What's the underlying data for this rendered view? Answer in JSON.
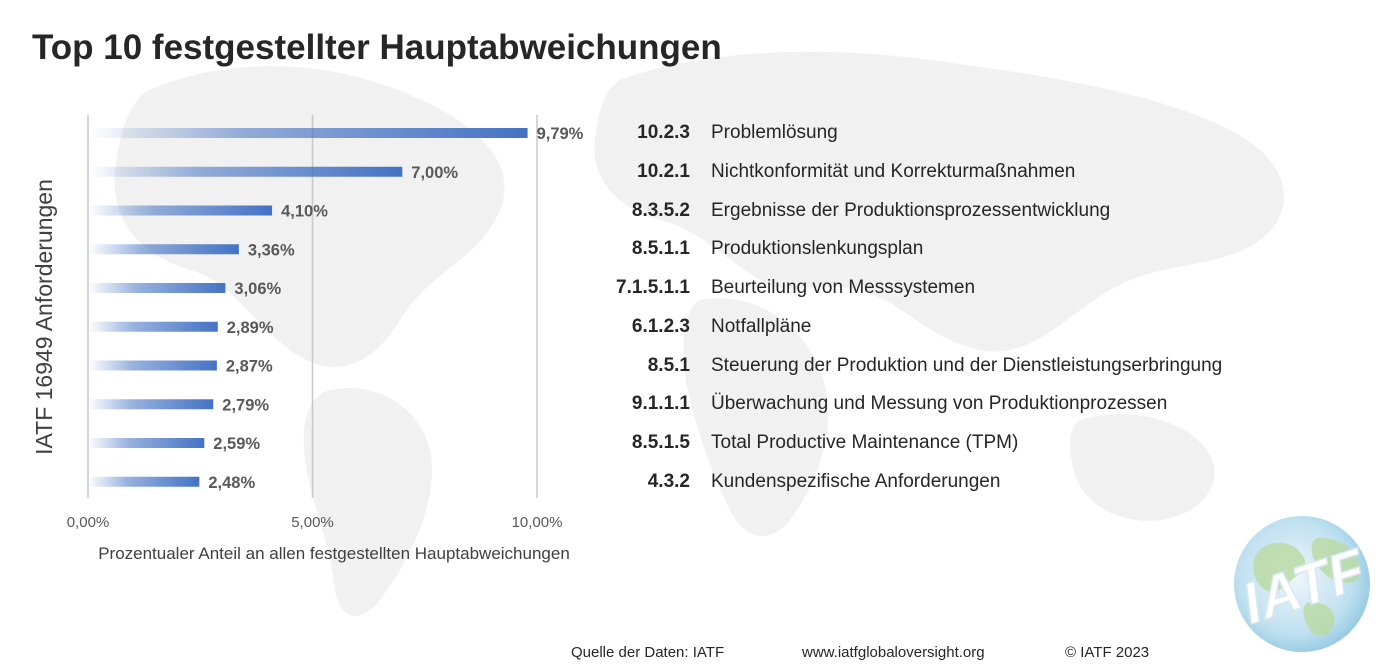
{
  "page": {
    "title": "Top 10 festgestellter Hauptabweichungen"
  },
  "chart_data": {
    "type": "bar",
    "orientation": "horizontal",
    "title": "Top 10 festgestellter Hauptabweichungen",
    "ylabel": "IATF 16949 Anforderungen",
    "xlabel": "Prozentualer Anteil an allen festgestellten Hauptabweichungen",
    "xlim": [
      0,
      10
    ],
    "xticks": [
      0,
      5,
      10
    ],
    "xtick_labels": [
      "0,00%",
      "5,00%",
      "10,00%"
    ],
    "grid": "vertical",
    "bar_color": "#4472C4",
    "categories": [
      {
        "code": "10.2.3",
        "label": "Problemlösung"
      },
      {
        "code": "10.2.1",
        "label": "Nichtkonformität und Korrekturmaßnahmen"
      },
      {
        "code": "8.3.5.2",
        "label": "Ergebnisse der Produktionsprozessentwicklung"
      },
      {
        "code": "8.5.1.1",
        "label": "Produktionslenkungsplan"
      },
      {
        "code": "7.1.5.1.1",
        "label": "Beurteilung von Messsystemen"
      },
      {
        "code": "6.1.2.3",
        "label": "Notfallpläne"
      },
      {
        "code": "8.5.1",
        "label": "Steuerung der Produktion und der Dienstleistungserbringung"
      },
      {
        "code": "9.1.1.1",
        "label": "Überwachung und Messung von Produktionprozessen"
      },
      {
        "code": "8.5.1.5",
        "label": "Total Productive Maintenance (TPM)"
      },
      {
        "code": "4.3.2",
        "label": "Kundenspezifische Anforderungen"
      }
    ],
    "values": [
      9.79,
      7.0,
      4.1,
      3.36,
      3.06,
      2.89,
      2.87,
      2.79,
      2.59,
      2.48
    ],
    "value_labels": [
      "9,79%",
      "7,00%",
      "4,10%",
      "3,36%",
      "3,06%",
      "2,89%",
      "2,87%",
      "2,79%",
      "2,59%",
      "2,48%"
    ]
  },
  "footer": {
    "source": "Quelle der Daten: IATF",
    "url": "www.iatfglobaloversight.org",
    "copyright": "© IATF 2023"
  },
  "logo": {
    "text": "IATF"
  }
}
